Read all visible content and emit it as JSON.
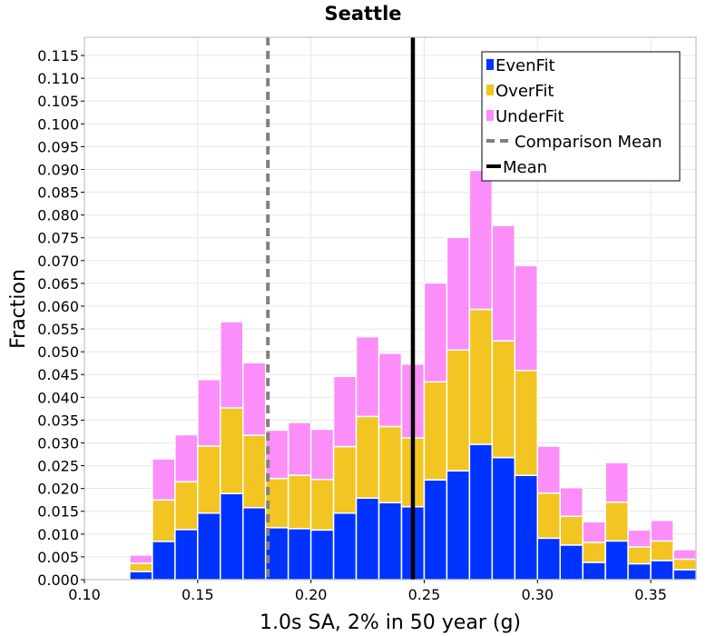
{
  "chart_data": {
    "type": "bar",
    "stacked": true,
    "title": "Seattle",
    "xlabel": "1.0s SA, 2% in 50 year (g)",
    "ylabel": "Fraction",
    "xlim": [
      0.1,
      0.37
    ],
    "ylim": [
      0.0,
      0.119
    ],
    "bin_width": 0.01,
    "bin_left_edges": [
      0.1,
      0.11,
      0.12,
      0.13,
      0.14,
      0.15,
      0.16,
      0.17,
      0.18,
      0.19,
      0.2,
      0.21,
      0.22,
      0.23,
      0.24,
      0.25,
      0.26,
      0.27,
      0.28,
      0.29,
      0.3,
      0.31,
      0.32,
      0.33,
      0.34,
      0.35,
      0.36
    ],
    "x_ticks": [
      "0.10",
      "0.15",
      "0.20",
      "0.25",
      "0.30",
      "0.35"
    ],
    "x_tick_values": [
      0.1,
      0.15,
      0.2,
      0.25,
      0.3,
      0.35
    ],
    "y_ticks": [
      "0.000",
      "0.005",
      "0.010",
      "0.015",
      "0.020",
      "0.025",
      "0.030",
      "0.035",
      "0.040",
      "0.045",
      "0.050",
      "0.055",
      "0.060",
      "0.065",
      "0.070",
      "0.075",
      "0.080",
      "0.085",
      "0.090",
      "0.095",
      "0.100",
      "0.105",
      "0.110",
      "0.115"
    ],
    "y_tick_values": [
      0.0,
      0.005,
      0.01,
      0.015,
      0.02,
      0.025,
      0.03,
      0.035,
      0.04,
      0.045,
      0.05,
      0.055,
      0.06,
      0.065,
      0.07,
      0.075,
      0.08,
      0.085,
      0.09,
      0.095,
      0.1,
      0.105,
      0.11,
      0.115
    ],
    "series": [
      {
        "name": "EvenFit",
        "color": "#0033ff",
        "values": [
          0.0002,
          0.0002,
          0.0018,
          0.0084,
          0.011,
          0.0146,
          0.0189,
          0.0158,
          0.0114,
          0.0112,
          0.0109,
          0.0146,
          0.0179,
          0.0169,
          0.016,
          0.0219,
          0.0239,
          0.0297,
          0.0268,
          0.0229,
          0.0091,
          0.0076,
          0.0038,
          0.0085,
          0.0035,
          0.0042,
          0.0022
        ]
      },
      {
        "name": "OverFit",
        "color": "#f2c522",
        "values": [
          0.0,
          0.0,
          0.0018,
          0.0091,
          0.0105,
          0.0147,
          0.0188,
          0.0159,
          0.0108,
          0.0117,
          0.0111,
          0.0146,
          0.0179,
          0.0167,
          0.0151,
          0.0215,
          0.0265,
          0.0296,
          0.0256,
          0.023,
          0.0099,
          0.0063,
          0.0044,
          0.0085,
          0.0037,
          0.0043,
          0.0023
        ]
      },
      {
        "name": "UnderFit",
        "color": "#fb8ef8",
        "values": [
          0.0,
          0.0,
          0.0018,
          0.009,
          0.0103,
          0.0146,
          0.0189,
          0.0159,
          0.0106,
          0.0116,
          0.011,
          0.0154,
          0.0175,
          0.0161,
          0.0162,
          0.0217,
          0.0247,
          0.0305,
          0.0253,
          0.023,
          0.0103,
          0.0063,
          0.0045,
          0.0087,
          0.0037,
          0.0045,
          0.0021
        ]
      }
    ],
    "lines": [
      {
        "name": "Comparison Mean",
        "x": 0.181,
        "color": "#808080",
        "style": "dashed"
      },
      {
        "name": "Mean",
        "x": 0.245,
        "color": "#000000",
        "style": "solid"
      }
    ],
    "legend": {
      "placement": "top-right",
      "entries": [
        {
          "label": "EvenFit",
          "kind": "box",
          "color": "#0033ff"
        },
        {
          "label": "OverFit",
          "kind": "box",
          "color": "#f2c522"
        },
        {
          "label": "UnderFit",
          "kind": "box",
          "color": "#fb8ef8"
        },
        {
          "label": "Comparison Mean",
          "kind": "dashed-line",
          "color": "#808080"
        },
        {
          "label": "Mean",
          "kind": "line",
          "color": "#000000"
        }
      ]
    },
    "grid": true,
    "colors": {
      "grid": "#e6e6e6",
      "frame": "#b4b4b4",
      "bar_edge": "#ffffff"
    }
  }
}
